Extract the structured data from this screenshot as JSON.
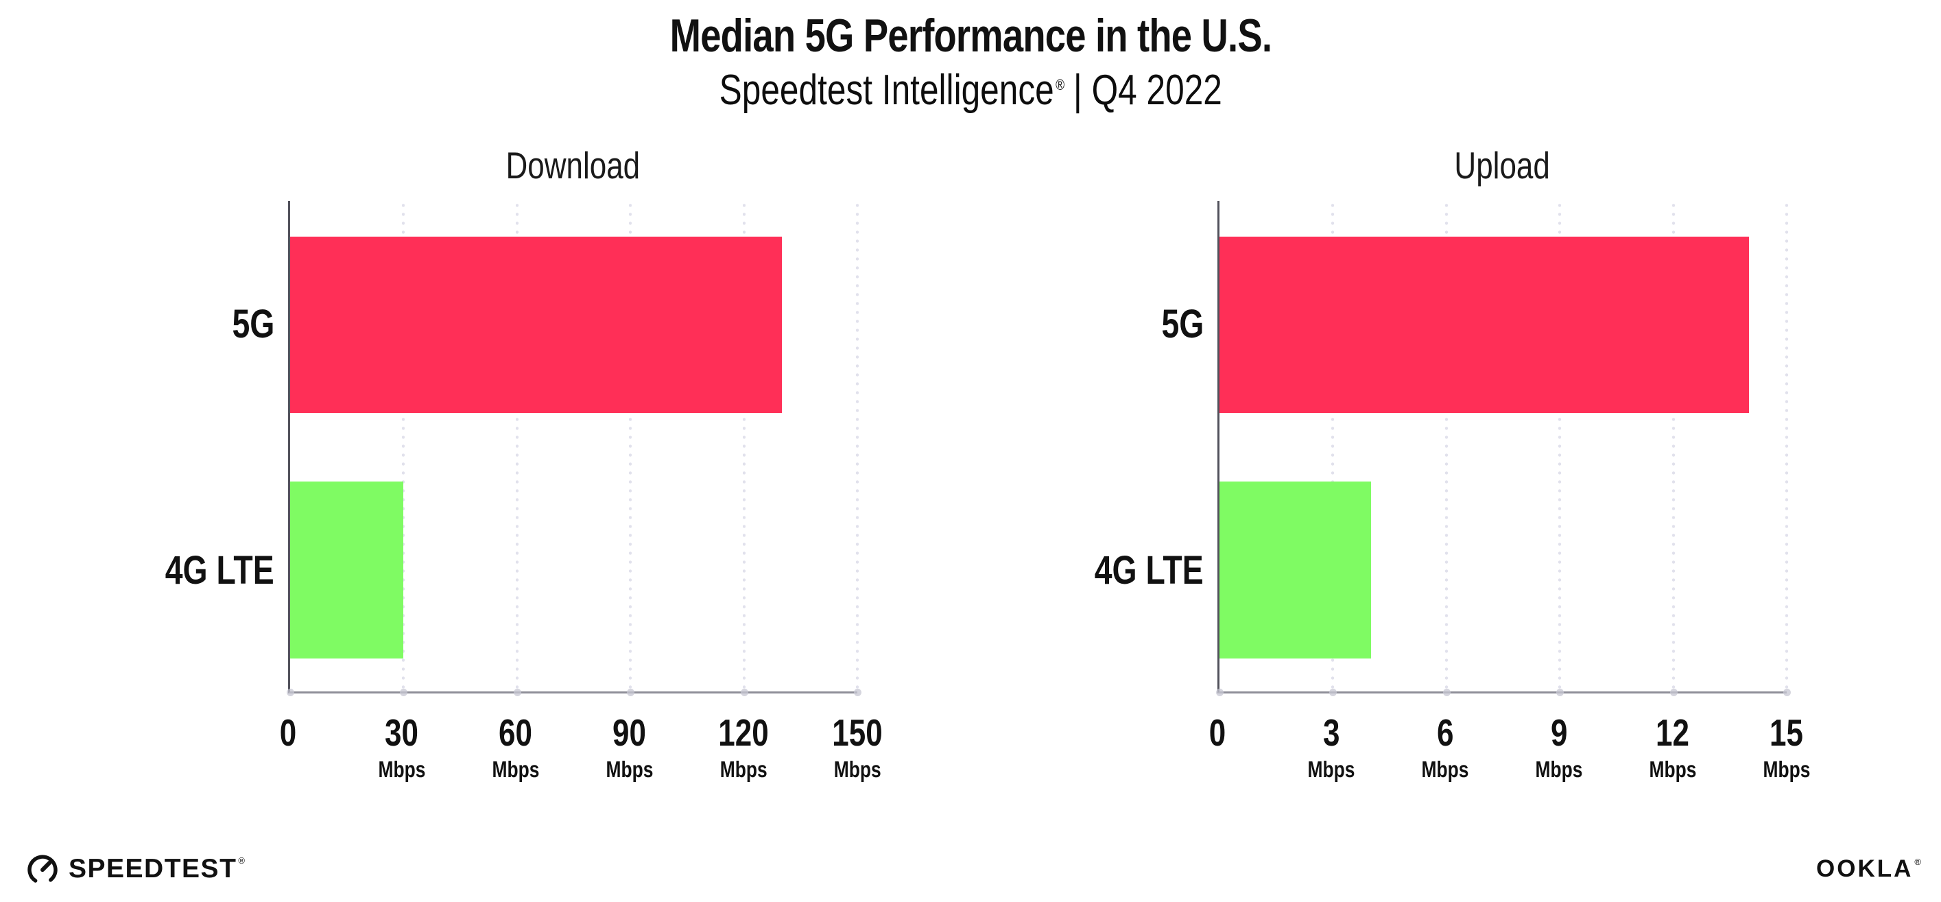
{
  "header": {
    "title": "Median 5G Performance in the U.S.",
    "subtitle_brand": "Speedtest Intelligence",
    "subtitle_reg": "®",
    "subtitle_rest": "| Q4 2022"
  },
  "chart_data": [
    {
      "type": "bar",
      "orientation": "horizontal",
      "title": "Download",
      "categories": [
        "5G",
        "4G LTE"
      ],
      "values": [
        130,
        30
      ],
      "value_unit": "Mbps",
      "xlim": [
        0,
        150
      ],
      "ticks": [
        0,
        30,
        60,
        90,
        120,
        150
      ],
      "tick_unit": "Mbps",
      "bar_colors": [
        "#ff2f57",
        "#7ffb63"
      ],
      "grid": "vertical-dotted",
      "legend": "none"
    },
    {
      "type": "bar",
      "orientation": "horizontal",
      "title": "Upload",
      "categories": [
        "5G",
        "4G LTE"
      ],
      "values": [
        14,
        4
      ],
      "value_unit": "Mbps",
      "xlim": [
        0,
        15
      ],
      "ticks": [
        0,
        3,
        6,
        9,
        12,
        15
      ],
      "tick_unit": "Mbps",
      "bar_colors": [
        "#ff2f57",
        "#7ffb63"
      ],
      "grid": "vertical-dotted",
      "legend": "none"
    }
  ],
  "footer": {
    "speedtest_wordmark": "SPEEDTEST",
    "speedtest_reg": "®",
    "ookla_wordmark": "OOKLA",
    "ookla_reg": "®"
  },
  "colors": {
    "bar_5g": "#ff2f57",
    "bar_4g_lte": "#7ffb63",
    "x_axis": "#8e8e98",
    "y_axis": "#52525c",
    "gridline_dot": "#e1e1ec",
    "text": "#111111"
  }
}
